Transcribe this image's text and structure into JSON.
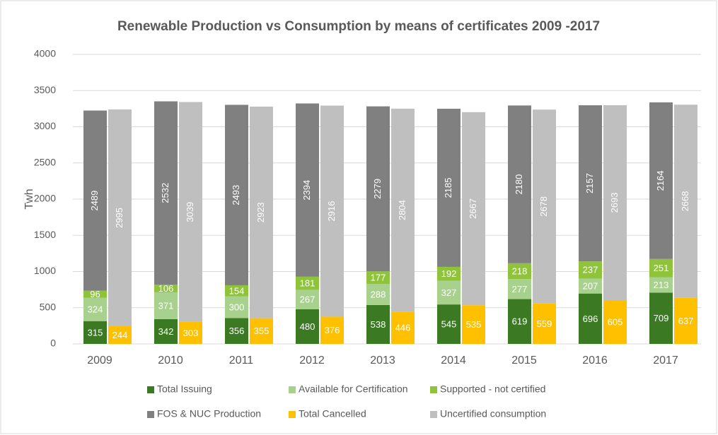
{
  "chart_data": {
    "type": "stacked_bar",
    "title": "Renewable Production vs Consumption by means of certificates 2009 -2017",
    "y_label": "Twh",
    "categories": [
      "2009",
      "2010",
      "2011",
      "2012",
      "2013",
      "2014",
      "2015",
      "2016",
      "2017"
    ],
    "series": [
      {
        "name": "Total Issuing",
        "color": "#3b7a22",
        "stack": 0,
        "values": [
          315,
          342,
          356,
          480,
          538,
          545,
          619,
          696,
          709
        ]
      },
      {
        "name": "Available for Certification",
        "color": "#a9d18e",
        "stack": 0,
        "values": [
          324,
          371,
          300,
          267,
          288,
          327,
          277,
          207,
          213
        ]
      },
      {
        "name": "Supported - not certified",
        "color": "#8fc33c",
        "stack": 0,
        "values": [
          96,
          106,
          154,
          181,
          177,
          192,
          218,
          237,
          251
        ]
      },
      {
        "name": "FOS & NUC Production",
        "color": "#808080",
        "stack": 0,
        "values": [
          2489,
          2532,
          2493,
          2394,
          2279,
          2185,
          2180,
          2157,
          2164
        ]
      },
      {
        "name": "Total Cancelled",
        "color": "#ffc000",
        "stack": 1,
        "values": [
          244,
          303,
          355,
          376,
          446,
          535,
          559,
          605,
          637
        ]
      },
      {
        "name": "Uncertified consumption",
        "color": "#bfbfbf",
        "stack": 1,
        "values": [
          2995,
          3039,
          2923,
          2916,
          2804,
          2667,
          2678,
          2693,
          2668
        ]
      }
    ],
    "ylim": [
      0,
      4000
    ],
    "yticks": [
      0,
      500,
      1000,
      1500,
      2000,
      2500,
      3000,
      3500,
      4000
    ],
    "grid": true,
    "legend": "bottom"
  }
}
